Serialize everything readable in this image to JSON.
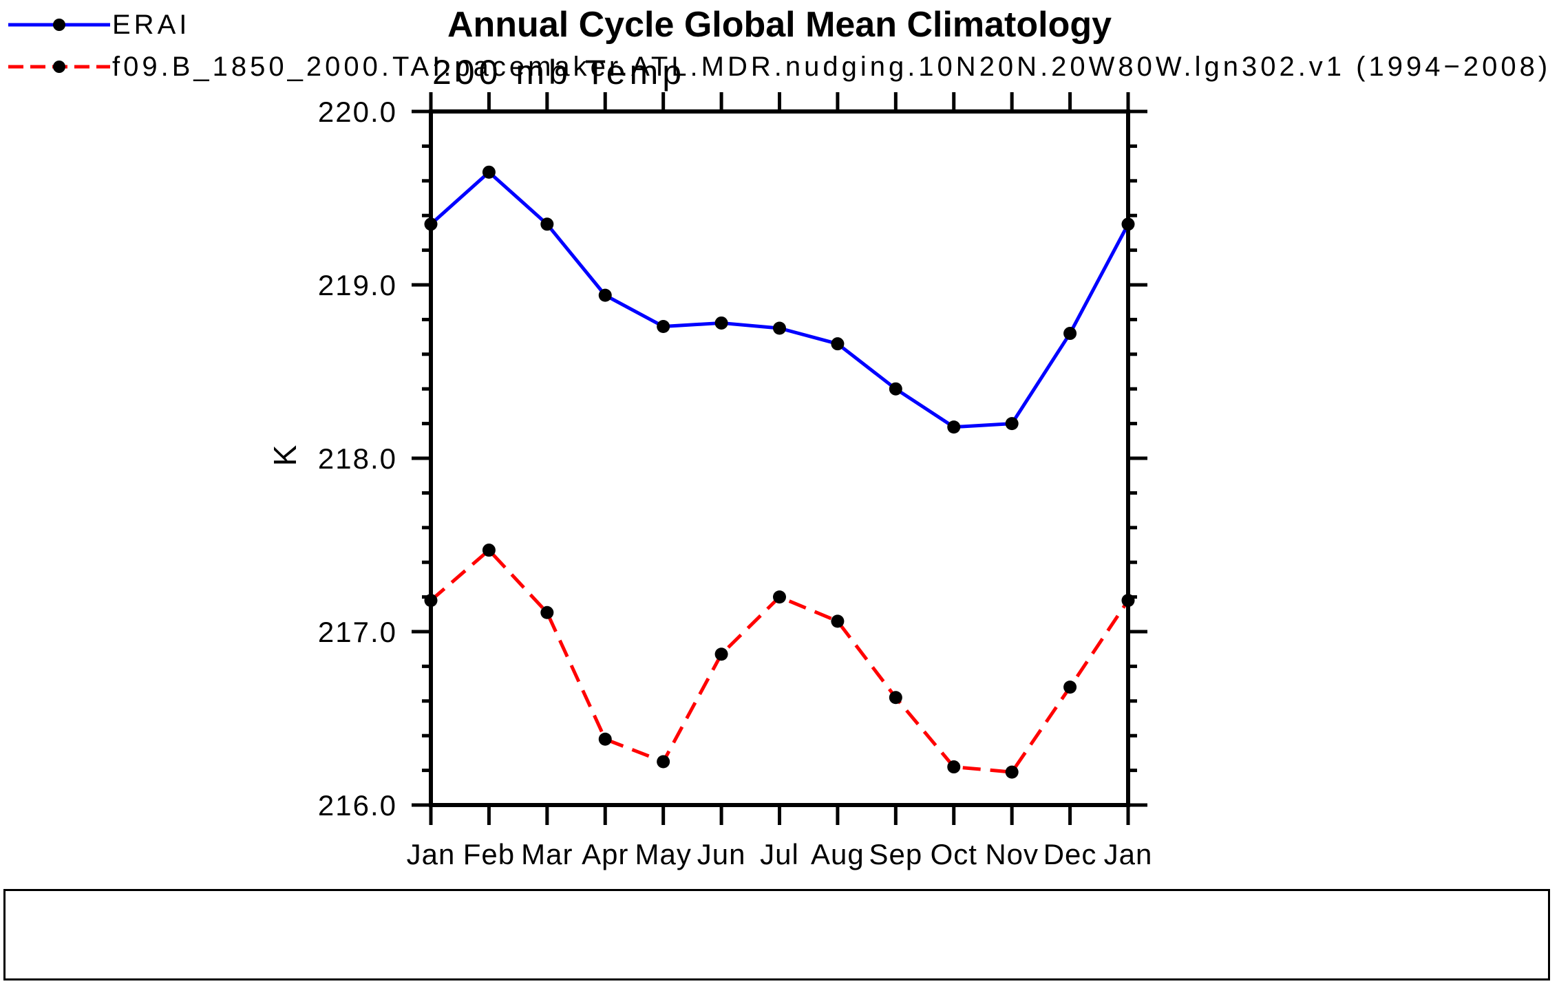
{
  "title": "Annual Cycle Global Mean Climatology",
  "subtitle": "200 mb Temp",
  "colors": {
    "erai": "#0000ff",
    "model": "#ff0000",
    "axis": "#000000",
    "marker": "#000000",
    "background": "#ffffff"
  },
  "chart_data": {
    "type": "line",
    "title": "Annual Cycle Global Mean Climatology",
    "subtitle": "200 mb Temp",
    "xlabel": "",
    "ylabel": "K",
    "categories": [
      "Jan",
      "Feb",
      "Mar",
      "Apr",
      "May",
      "Jun",
      "Jul",
      "Aug",
      "Sep",
      "Oct",
      "Nov",
      "Dec",
      "Jan"
    ],
    "ylim": [
      216.0,
      220.0
    ],
    "ytick_major": [
      220.0,
      219.0,
      218.0,
      217.0,
      216.0
    ],
    "ytick_labels": [
      "220.0",
      "219.0",
      "218.0",
      "217.0",
      "216.0"
    ],
    "ytick_minor_step": 0.2,
    "grid": false,
    "legend_position": "bottom-box",
    "series": [
      {
        "name": "ERAI",
        "color": "#0000ff",
        "style": "solid",
        "marker": "circle",
        "marker_color": "#000000",
        "values": [
          219.35,
          219.65,
          219.35,
          218.94,
          218.76,
          218.78,
          218.75,
          218.66,
          218.4,
          218.18,
          218.2,
          218.72,
          219.35
        ]
      },
      {
        "name": "f09.B_1850_2000.TAI.pacemaker.ATL.MDR.nudging.10N20N.20W80W.lgn302.v1 (1994−2008)",
        "color": "#ff0000",
        "style": "dashed",
        "marker": "circle",
        "marker_color": "#000000",
        "values": [
          217.18,
          217.47,
          217.11,
          216.38,
          216.25,
          216.87,
          217.2,
          217.06,
          216.62,
          216.22,
          216.19,
          216.68,
          217.18
        ]
      }
    ]
  }
}
